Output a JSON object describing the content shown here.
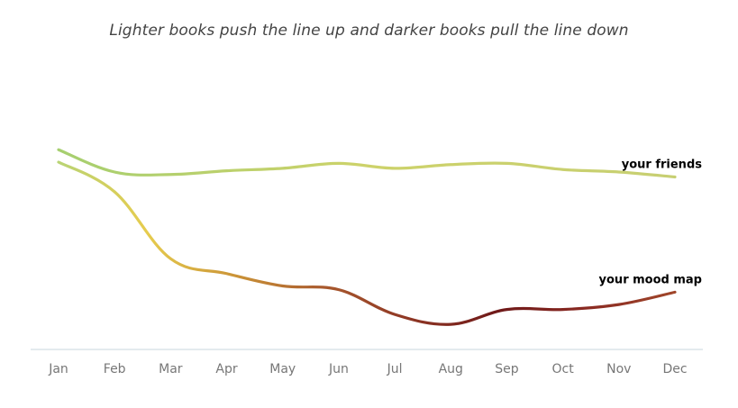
{
  "chart_data": {
    "type": "line",
    "subtitle": "Lighter books push the line up and darker books pull the line down",
    "categories": [
      "Jan",
      "Feb",
      "Mar",
      "Apr",
      "May",
      "Jun",
      "Jul",
      "Aug",
      "Sep",
      "Oct",
      "Nov",
      "Dec"
    ],
    "ylim": [
      0,
      100
    ],
    "grid": false,
    "series": [
      {
        "name": "your friends",
        "values": [
          77,
          68,
          67,
          68.5,
          69.5,
          71.5,
          69.5,
          71,
          71.5,
          69,
          68,
          66
        ],
        "colors": [
          "#a6cf6f",
          "#cdd26a",
          "#c7cf72"
        ]
      },
      {
        "name": "your mood map",
        "values": [
          72,
          60,
          33,
          27,
          22,
          20.5,
          10.5,
          6.5,
          12.5,
          12.5,
          14.5,
          19.5
        ],
        "colors": [
          "#b9d475",
          "#e6cc4e",
          "#cb9437",
          "#a95a2e",
          "#8e3624",
          "#6f1919",
          "#8a2a22",
          "#a0462a"
        ]
      }
    ],
    "axis_color": "#c9d7dc"
  }
}
